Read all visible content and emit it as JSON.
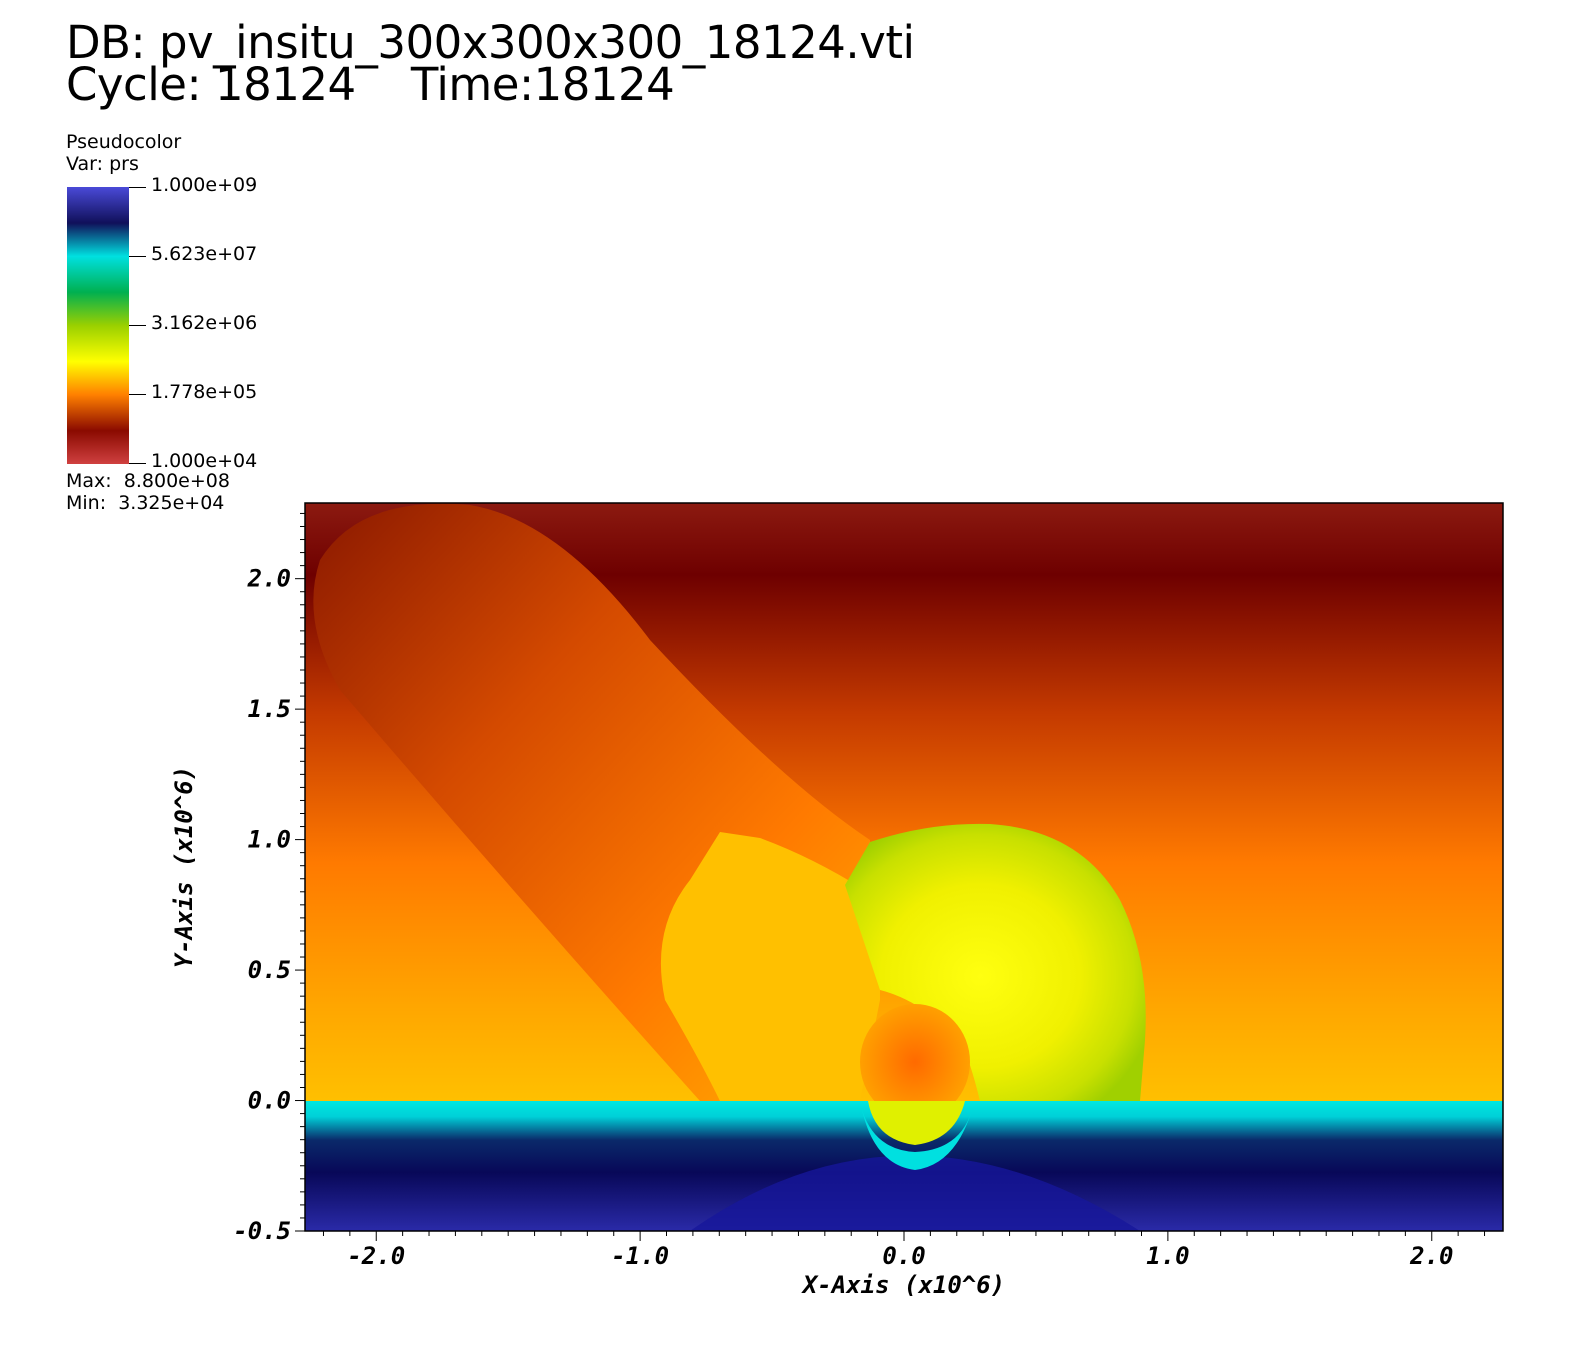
{
  "header": {
    "db_line": "DB: pv_insitu_300x300x300_18124.vti",
    "cycle_line": "Cycle: 18124    Time:18124"
  },
  "legend": {
    "plot_type": "Pseudocolor",
    "var_label": "Var: prs",
    "ticks": [
      "1.000e+09",
      "5.623e+07",
      "3.162e+06",
      "1.778e+05",
      "1.000e+04"
    ],
    "max_label": "Max:  8.800e+08",
    "min_label": "Min:  3.325e+04",
    "colors": [
      "#4a4ad8",
      "#10105a",
      "#00e0e0",
      "#00b050",
      "#9ad000",
      "#ffff00",
      "#ff8000",
      "#8a0a00",
      "#d04040"
    ]
  },
  "chart_data": {
    "type": "heatmap",
    "variable": "prs",
    "scale": "log",
    "value_range": [
      10000,
      1000000000
    ],
    "data_max": 880000000,
    "data_min": 33250,
    "xlabel": "X-Axis (x10^6)",
    "ylabel": "Y-Axis (x10^6)",
    "xlim": [
      -2.27,
      2.27
    ],
    "ylim": [
      -0.5,
      2.29
    ],
    "x_ticks": [
      -2.0,
      -1.0,
      0.0,
      1.0,
      2.0
    ],
    "x_tick_labels": [
      "-2.0",
      "-1.0",
      "0.0",
      "1.0",
      "2.0"
    ],
    "y_ticks": [
      -0.5,
      0.0,
      0.5,
      1.0,
      1.5,
      2.0
    ],
    "y_tick_labels": [
      "-0.5",
      "0.0",
      "0.5",
      "1.0",
      "1.5",
      "2.0"
    ],
    "features": {
      "surface_level_y": 0.0,
      "elongated_plume_center": [
        -1.3,
        1.2
      ],
      "mushroom_cloud_center": [
        0.35,
        0.6
      ],
      "crater_center_x": 0.05
    }
  }
}
